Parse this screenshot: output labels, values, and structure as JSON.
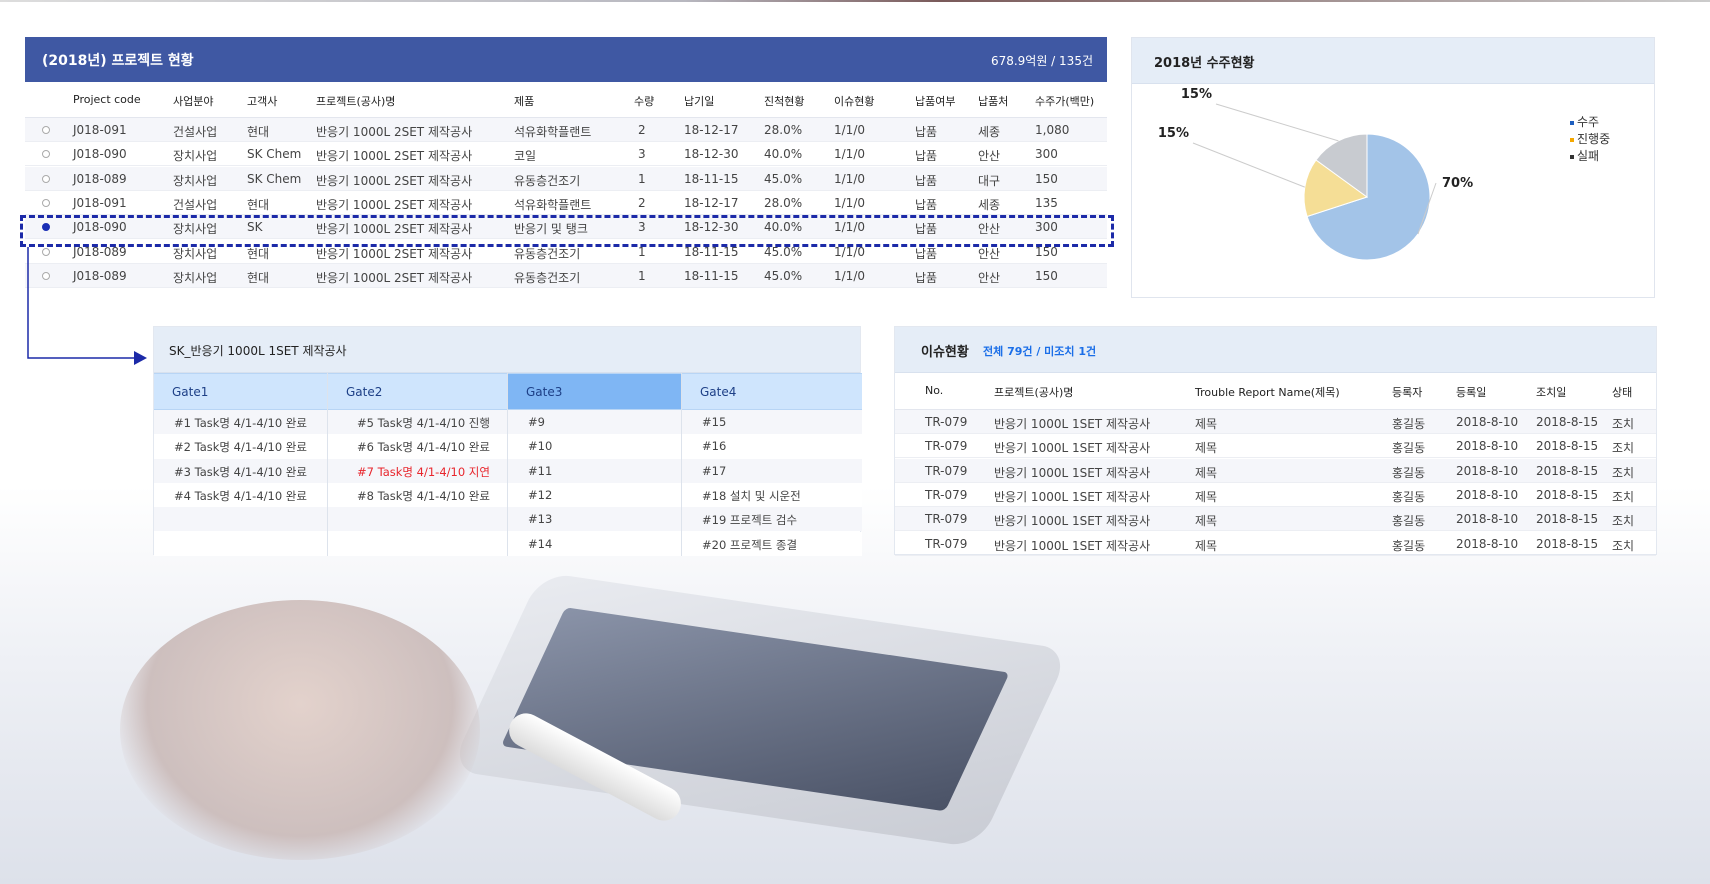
{
  "project_table": {
    "title": "(2018년) 프로젝트 현황",
    "summary": "678.9억원 / 135건",
    "columns": [
      "Project code",
      "사업분야",
      "고객사",
      "프로젝트(공사)명",
      "제품",
      "수량",
      "납기일",
      "진척현황",
      "이슈현황",
      "납품여부",
      "납품처",
      "수주가(백만)"
    ],
    "rows": [
      {
        "selected": false,
        "cells": [
          "J018-091",
          "건설사업",
          "현대",
          "반응기 1000L 2SET 제작공사",
          "석유화학플랜트",
          "2",
          "18-12-17",
          "28.0%",
          "1/1/0",
          "납품",
          "세종",
          "1,080"
        ]
      },
      {
        "selected": false,
        "cells": [
          "J018-090",
          "장치사업",
          "SK Chem",
          "반응기 1000L 2SET 제작공사",
          "코일",
          "3",
          "18-12-30",
          "40.0%",
          "1/1/0",
          "납품",
          "안산",
          "300"
        ]
      },
      {
        "selected": false,
        "cells": [
          "J018-089",
          "장치사업",
          "SK Chem",
          "반응기 1000L 2SET 제작공사",
          "유동층건조기",
          "1",
          "18-11-15",
          "45.0%",
          "1/1/0",
          "납품",
          "대구",
          "150"
        ]
      },
      {
        "selected": false,
        "cells": [
          "J018-091",
          "건설사업",
          "현대",
          "반응기 1000L 2SET 제작공사",
          "석유화학플랜트",
          "2",
          "18-12-17",
          "28.0%",
          "1/1/0",
          "납품",
          "세종",
          "135"
        ]
      },
      {
        "selected": true,
        "cells": [
          "J018-090",
          "장치사업",
          "SK",
          "반응기 1000L 2SET 제작공사",
          "반응기 및 탱크",
          "3",
          "18-12-30",
          "40.0%",
          "1/1/0",
          "납품",
          "안산",
          "300"
        ]
      },
      {
        "selected": false,
        "cells": [
          "J018-089",
          "장치사업",
          "현대",
          "반응기 1000L 2SET 제작공사",
          "유동층건조기",
          "1",
          "18-11-15",
          "45.0%",
          "1/1/0",
          "납품",
          "안산",
          "150"
        ]
      },
      {
        "selected": false,
        "cells": [
          "J018-089",
          "장치사업",
          "현대",
          "반응기 1000L 2SET 제작공사",
          "유동층건조기",
          "1",
          "18-11-15",
          "45.0%",
          "1/1/0",
          "납품",
          "안산",
          "150"
        ]
      }
    ]
  },
  "chart_data": {
    "type": "pie",
    "title": "2018년 수주현황",
    "categories": [
      "수주",
      "진행중",
      "실패"
    ],
    "values": [
      70,
      15,
      15
    ],
    "labels": [
      "70%",
      "15%",
      "15%"
    ],
    "colors": [
      "#a3c4e8",
      "#f5de96",
      "#c8cbd0"
    ],
    "legend_colors": [
      "#1f5fbf",
      "#f5a800",
      "#333333"
    ],
    "legend": "top-right"
  },
  "gate_panel": {
    "title": "SK_반응기 1000L 1SET 제작공사",
    "gates": [
      {
        "label": "Gate1",
        "active": false,
        "items": [
          "#1 Task명 4/1-4/10 완료",
          "#2 Task명 4/1-4/10 완료",
          "#3 Task명 4/1-4/10 완료",
          "#4 Task명 4/1-4/10 완료"
        ]
      },
      {
        "label": "Gate2",
        "active": false,
        "items": [
          "#5 Task명 4/1-4/10 진행",
          "#6 Task명 4/1-4/10 완료",
          "#7 Task명 4/1-4/10 지연",
          "#8 Task명 4/1-4/10 완료"
        ],
        "delayed_index": 2
      },
      {
        "label": "Gate3",
        "active": true,
        "items": [
          "#9",
          "#10",
          "#11",
          "#12",
          "#13",
          "#14"
        ]
      },
      {
        "label": "Gate4",
        "active": false,
        "items": [
          "#15",
          "#16",
          "#17",
          "#18  설치 및 시운전",
          "#19  프로젝트 검수",
          "#20  프로젝트 종결"
        ]
      }
    ],
    "delay_color": "#e8262d"
  },
  "issue_panel": {
    "title": "이슈현황",
    "summary": "전체 79건 /  미조치 1건",
    "columns": [
      "No.",
      "프로젝트(공사)명",
      "Trouble Report Name(제목)",
      "등록자",
      "등록일",
      "조치일",
      "상태"
    ],
    "rows": [
      [
        "TR-079",
        "반응기 1000L 1SET 제작공사",
        "제목",
        "홍길동",
        "2018-8-10",
        "2018-8-15",
        "조치"
      ],
      [
        "TR-079",
        "반응기 1000L 1SET 제작공사",
        "제목",
        "홍길동",
        "2018-8-10",
        "2018-8-15",
        "조치"
      ],
      [
        "TR-079",
        "반응기 1000L 1SET 제작공사",
        "제목",
        "홍길동",
        "2018-8-10",
        "2018-8-15",
        "조치"
      ],
      [
        "TR-079",
        "반응기 1000L 1SET 제작공사",
        "제목",
        "홍길동",
        "2018-8-10",
        "2018-8-15",
        "조치"
      ],
      [
        "TR-079",
        "반응기 1000L 1SET 제작공사",
        "제목",
        "홍길동",
        "2018-8-10",
        "2018-8-15",
        "조치"
      ],
      [
        "TR-079",
        "반응기 1000L 1SET 제작공사",
        "제목",
        "홍길동",
        "2018-8-10",
        "2018-8-15",
        "조치"
      ]
    ]
  },
  "colors": {
    "header_blue": "#3f58a3",
    "selection": "#1c2aa8",
    "link_blue": "#1a6ee8"
  }
}
